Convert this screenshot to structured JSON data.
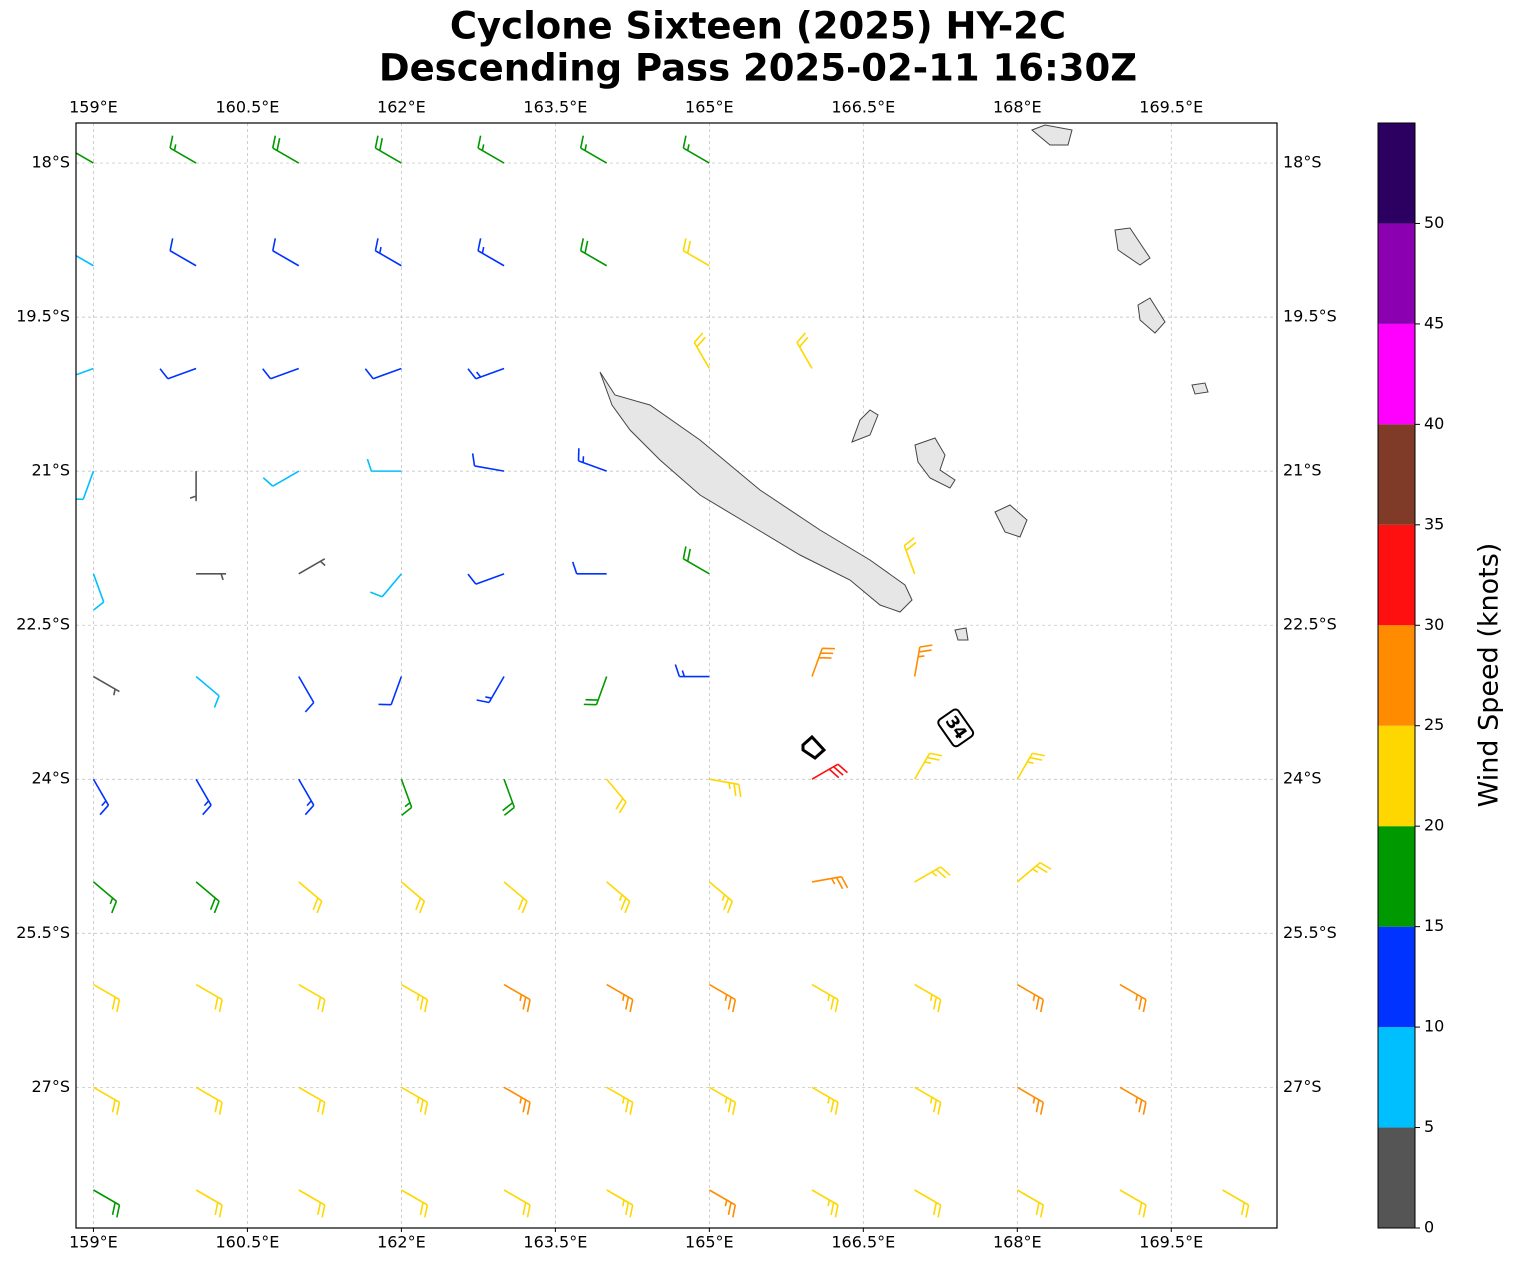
{
  "map": {
    "type": "wind-barbs",
    "title": [
      "Cyclone Sixteen (2025) HY-2C",
      "Descending Pass 2025-02-11 16:30Z"
    ],
    "lonlim": [
      158.83,
      170.53
    ],
    "latlim": [
      -28.37,
      -17.61
    ],
    "xticks": [
      {
        "value": 159,
        "label": "159°E"
      },
      {
        "value": 160.5,
        "label": "160.5°E"
      },
      {
        "value": 162,
        "label": "162°E"
      },
      {
        "value": 163.5,
        "label": "163.5°E"
      },
      {
        "value": 165,
        "label": "165°E"
      },
      {
        "value": 166.5,
        "label": "166.5°E"
      },
      {
        "value": 168,
        "label": "168°E"
      },
      {
        "value": 169.5,
        "label": "169.5°E"
      }
    ],
    "yticks": [
      {
        "value": -18,
        "label": "18°S"
      },
      {
        "value": -19.5,
        "label": "19.5°S"
      },
      {
        "value": -21,
        "label": "21°S"
      },
      {
        "value": -22.5,
        "label": "22.5°S"
      },
      {
        "value": -24,
        "label": "24°S"
      },
      {
        "value": -25.5,
        "label": "25.5°S"
      },
      {
        "value": -27,
        "label": "27°S"
      }
    ],
    "grid": true,
    "annotation": {
      "text": "34",
      "lon": 167.4,
      "lat": -23.5
    },
    "wind": {
      "lons": [
        159,
        160,
        161,
        162,
        163,
        164,
        165,
        166,
        167,
        168,
        169,
        170
      ],
      "lats": [
        -18,
        -19,
        -20,
        -21,
        -22,
        -23,
        -24,
        -25,
        -26,
        -27,
        -28
      ],
      "speed": [
        [
          17,
          17,
          18,
          18,
          17,
          17,
          17,
          null,
          null,
          null,
          null,
          null
        ],
        [
          8,
          12,
          12,
          13,
          14,
          18,
          20,
          null,
          null,
          null,
          null,
          null
        ],
        [
          7,
          10,
          12,
          12,
          13,
          null,
          22,
          22,
          null,
          null,
          null,
          null
        ],
        [
          8,
          4,
          8,
          9,
          12,
          14,
          null,
          null,
          null,
          null,
          null,
          null
        ],
        [
          8,
          4,
          3,
          9,
          12,
          12,
          18,
          null,
          20,
          null,
          null,
          null
        ],
        [
          4,
          8,
          12,
          12,
          14,
          18,
          14,
          28,
          26,
          null,
          null,
          null
        ],
        [
          13,
          14,
          14,
          16,
          18,
          20,
          24,
          30,
          24,
          23,
          null,
          null
        ],
        [
          17,
          18,
          22,
          22,
          22,
          23,
          24,
          26,
          24,
          23,
          null,
          null
        ],
        [
          22,
          22,
          22,
          24,
          26,
          27,
          27,
          24,
          23,
          25,
          26,
          null
        ],
        [
          22,
          22,
          22,
          24,
          25,
          24,
          23,
          24,
          24,
          25,
          26,
          null
        ],
        [
          18,
          22,
          22,
          22,
          22,
          24,
          26,
          24,
          22,
          22,
          22,
          22
        ]
      ],
      "direction": [
        [
          300,
          300,
          300,
          300,
          300,
          300,
          300,
          null,
          null,
          null,
          null,
          null
        ],
        [
          300,
          300,
          300,
          300,
          300,
          300,
          300,
          null,
          null,
          null,
          null,
          null
        ],
        [
          250,
          250,
          250,
          250,
          250,
          null,
          330,
          330,
          null,
          null,
          null,
          null
        ],
        [
          200,
          180,
          240,
          270,
          280,
          290,
          null,
          null,
          null,
          null,
          null,
          null
        ],
        [
          160,
          90,
          60,
          220,
          250,
          270,
          300,
          null,
          340,
          null,
          null,
          null
        ],
        [
          120,
          130,
          150,
          200,
          210,
          200,
          270,
          20,
          10,
          null,
          null,
          null
        ],
        [
          150,
          150,
          150,
          160,
          160,
          140,
          100,
          60,
          30,
          30,
          null,
          null
        ],
        [
          130,
          130,
          130,
          130,
          130,
          130,
          130,
          80,
          60,
          50,
          null,
          null
        ],
        [
          120,
          120,
          120,
          120,
          120,
          120,
          120,
          120,
          120,
          120,
          120,
          null
        ],
        [
          120,
          120,
          120,
          120,
          120,
          120,
          120,
          120,
          120,
          120,
          120,
          null
        ],
        [
          120,
          120,
          120,
          120,
          120,
          120,
          120,
          120,
          120,
          120,
          120,
          120
        ]
      ]
    },
    "colorbar": {
      "label": "Wind Speed (knots)",
      "bounds": [
        0,
        5,
        10,
        15,
        20,
        25,
        30,
        35,
        40,
        45,
        50,
        55
      ],
      "colors": [
        "#555555",
        "#00bfff",
        "#0033ff",
        "#009900",
        "#ffd700",
        "#ff8c00",
        "#ff1010",
        "#7f3b28",
        "#ff00ff",
        "#8b00b0",
        "#2b0060"
      ],
      "ticks": [
        0,
        5,
        10,
        15,
        20,
        25,
        30,
        35,
        40,
        45,
        50
      ]
    }
  }
}
